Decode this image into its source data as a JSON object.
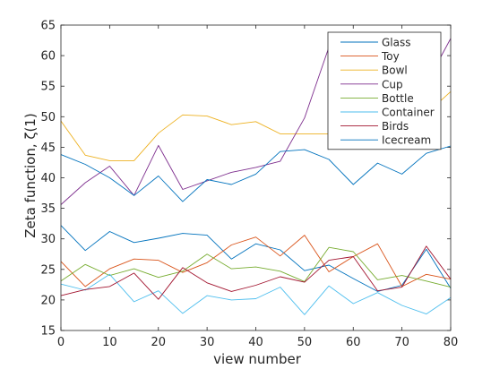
{
  "chart_data": {
    "type": "line",
    "xlabel": "view number",
    "ylabel": "Zeta function, ζ(1)",
    "xlim": [
      0,
      80
    ],
    "ylim": [
      15,
      65
    ],
    "xticks": [
      "0",
      "10",
      "20",
      "30",
      "40",
      "50",
      "60",
      "70",
      "80"
    ],
    "yticks": [
      "15",
      "20",
      "25",
      "30",
      "35",
      "40",
      "45",
      "50",
      "55",
      "60",
      "65"
    ],
    "grid": false,
    "legend_position": "top-right",
    "x": [
      0,
      5,
      10,
      15,
      20,
      25,
      30,
      35,
      40,
      45,
      50,
      55,
      60,
      65,
      70,
      75,
      80
    ],
    "series": [
      {
        "name": "Glass",
        "color": "#0072bd",
        "values": [
          32.2,
          28.1,
          31.2,
          29.4,
          30.1,
          30.9,
          30.6,
          26.7,
          29.2,
          28.2,
          24.8,
          25.7,
          23.5,
          21.4,
          22.4,
          28.3,
          21.9
        ]
      },
      {
        "name": "Toy",
        "color": "#d95319",
        "values": [
          26.3,
          22.2,
          25.1,
          26.7,
          26.5,
          24.5,
          26.1,
          29.0,
          30.3,
          27.2,
          30.6,
          24.6,
          27.1,
          29.2,
          22.2,
          24.2,
          23.4
        ]
      },
      {
        "name": "Bowl",
        "color": "#edb120",
        "values": [
          49.3,
          43.7,
          42.8,
          42.8,
          47.3,
          50.3,
          50.1,
          48.7,
          49.2,
          47.2,
          47.2,
          47.2,
          48.5,
          48.8,
          48.5,
          50.5,
          54.1
        ]
      },
      {
        "name": "Cup",
        "color": "#7e2f8e",
        "values": [
          35.6,
          39.2,
          41.9,
          37.1,
          45.3,
          38.1,
          39.5,
          40.9,
          41.7,
          42.7,
          49.8,
          61.4,
          54.0,
          55.2,
          50.8,
          55.4,
          62.8
        ]
      },
      {
        "name": "Bottle",
        "color": "#77ac30",
        "values": [
          23.1,
          25.8,
          24.0,
          25.1,
          23.7,
          24.7,
          27.5,
          25.1,
          25.4,
          24.7,
          23.0,
          28.6,
          27.9,
          23.3,
          24.0,
          23.1,
          22.1
        ]
      },
      {
        "name": "Container",
        "color": "#4dbeee",
        "values": [
          22.6,
          21.6,
          24.2,
          19.7,
          21.5,
          17.8,
          20.7,
          20.0,
          20.2,
          22.1,
          17.6,
          22.3,
          19.4,
          21.2,
          19.1,
          17.7,
          20.4
        ]
      },
      {
        "name": "Birds",
        "color": "#a2142f",
        "values": [
          20.7,
          21.7,
          22.2,
          24.4,
          20.1,
          25.3,
          22.8,
          21.4,
          22.4,
          23.8,
          22.9,
          26.5,
          27.1,
          21.5,
          22.1,
          28.8,
          23.4
        ]
      },
      {
        "name": "Icecream",
        "color": "#0072bd",
        "values": [
          43.8,
          42.2,
          40.0,
          37.1,
          40.3,
          36.1,
          39.7,
          38.9,
          40.6,
          44.3,
          44.6,
          43.0,
          38.9,
          42.4,
          40.6,
          44.0,
          45.2
        ]
      }
    ]
  }
}
